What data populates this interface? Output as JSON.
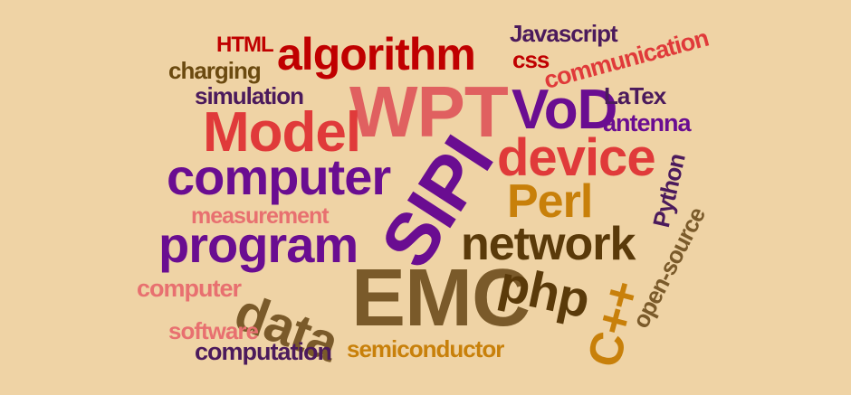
{
  "colors": {
    "background": "#efd3a5",
    "dark_red": "#c00000",
    "coral": "#e06060",
    "salmon": "#e87070",
    "red": "#e03a3a",
    "purple": "#6a0d91",
    "dark_purple": "#4b1a5c",
    "brown": "#6b4a10",
    "dark_brown": "#5a3a0a",
    "olive_brown": "#7a5a2a",
    "gold": "#c8800a"
  },
  "words": {
    "html": "HTML",
    "algorithm": "algorithm",
    "javascript": "Javascript",
    "css": "css",
    "communication": "communication",
    "charging": "charging",
    "simulation": "simulation",
    "wpt": "WPT",
    "vod": "VoD",
    "latex": "LaTex",
    "antenna": "antenna",
    "model": "Model",
    "device": "device",
    "computer_large": "computer",
    "sipi": "SIPI",
    "perl": "Perl",
    "python": "Python",
    "open_source": "open-source",
    "measurement": "measurement",
    "program": "program",
    "network": "network",
    "computer_small": "computer",
    "data": "data",
    "emc": "EMC",
    "php": "php",
    "cpp": "C++",
    "software": "software",
    "computation": "computation",
    "semiconductor": "semiconductor"
  }
}
